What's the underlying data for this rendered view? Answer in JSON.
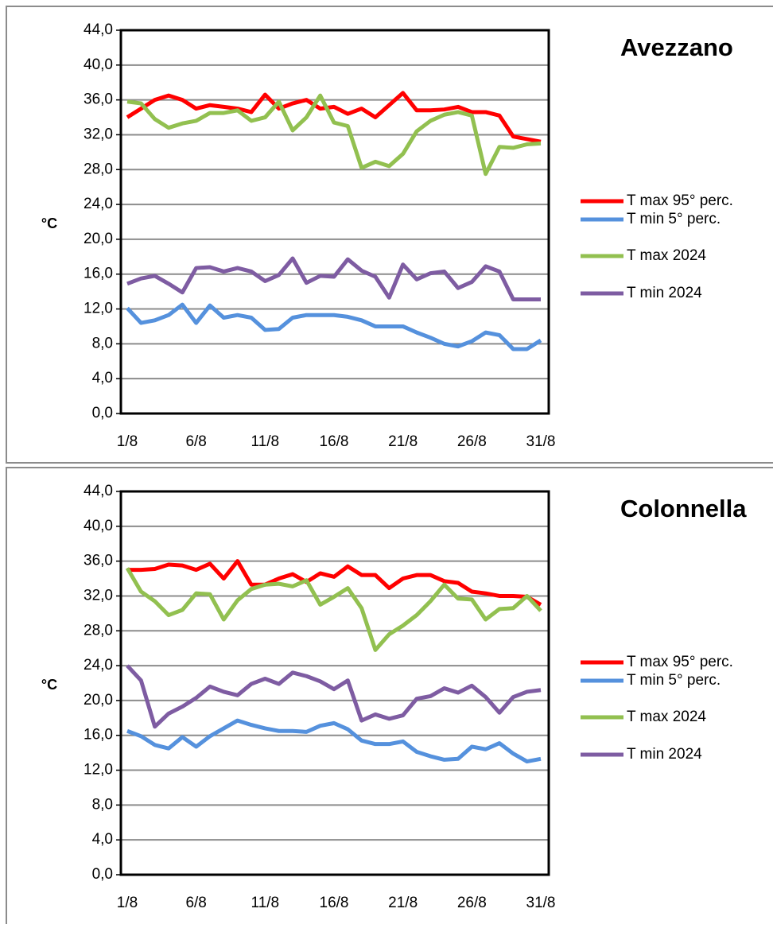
{
  "chart_data": [
    {
      "type": "line",
      "title": "Avezzano",
      "y_label": "°C",
      "categories": [
        "1/8",
        null,
        null,
        null,
        null,
        "6/8",
        null,
        null,
        null,
        null,
        "11/8",
        null,
        null,
        null,
        null,
        "16/8",
        null,
        null,
        null,
        null,
        "21/8",
        null,
        null,
        null,
        null,
        "26/8",
        null,
        null,
        null,
        null,
        "31/8"
      ],
      "ylim": [
        0,
        44
      ],
      "yticks": [
        {
          "value": 0,
          "label": "0,0"
        },
        {
          "value": 4,
          "label": "4,0"
        },
        {
          "value": 8,
          "label": "8,0"
        },
        {
          "value": 12,
          "label": "12,0"
        },
        {
          "value": 16,
          "label": "16,0"
        },
        {
          "value": 20,
          "label": "20,0"
        },
        {
          "value": 24,
          "label": "24,0"
        },
        {
          "value": 28,
          "label": "28,0"
        },
        {
          "value": 32,
          "label": "32,0"
        },
        {
          "value": 36,
          "label": "36,0"
        },
        {
          "value": 40,
          "label": "40,0"
        },
        {
          "value": 44,
          "label": "44,0"
        }
      ],
      "grid": true,
      "series": [
        {
          "name": "T max 95° perc.",
          "color": "#ff0000",
          "values": [
            34.0,
            35.0,
            36.0,
            36.5,
            36.0,
            35.0,
            35.4,
            35.2,
            35.0,
            34.6,
            36.6,
            35.0,
            35.6,
            36.0,
            35.0,
            35.2,
            34.4,
            35.0,
            34.0,
            35.4,
            36.8,
            34.8,
            34.8,
            34.9,
            35.2,
            34.6,
            34.6,
            34.2,
            31.8,
            31.5,
            31.2
          ]
        },
        {
          "name": "T min 5° perc.",
          "color": "#5591dd",
          "values": [
            12.1,
            10.4,
            10.7,
            11.3,
            12.5,
            10.4,
            12.4,
            11.0,
            11.3,
            11.0,
            9.6,
            9.7,
            11.0,
            11.3,
            11.3,
            11.3,
            11.1,
            10.7,
            10.0,
            10.0,
            10.0,
            9.3,
            8.7,
            8.0,
            7.7,
            8.3,
            9.3,
            9.0,
            7.4,
            7.4,
            8.4
          ]
        },
        {
          "name": "T max 2024",
          "color": "#92c050",
          "values": [
            35.8,
            35.6,
            33.8,
            32.8,
            33.3,
            33.6,
            34.5,
            34.5,
            34.8,
            33.6,
            34.0,
            35.8,
            32.5,
            34.0,
            36.5,
            33.4,
            33.0,
            28.2,
            28.9,
            28.4,
            29.8,
            32.4,
            33.6,
            34.3,
            34.6,
            34.2,
            27.5,
            30.6,
            30.5,
            30.9,
            31.0
          ]
        },
        {
          "name": "T min 2024",
          "color": "#7e5ca2",
          "values": [
            14.9,
            15.5,
            15.8,
            14.9,
            13.9,
            16.7,
            16.8,
            16.3,
            16.7,
            16.3,
            15.2,
            15.9,
            17.8,
            15.0,
            15.8,
            15.7,
            17.7,
            16.4,
            15.7,
            13.3,
            17.1,
            15.4,
            16.1,
            16.3,
            14.4,
            15.1,
            16.9,
            16.3,
            13.1,
            13.1,
            13.1
          ]
        }
      ]
    },
    {
      "type": "line",
      "title": "Colonnella",
      "y_label": "°C",
      "categories": [
        "1/8",
        null,
        null,
        null,
        null,
        "6/8",
        null,
        null,
        null,
        null,
        "11/8",
        null,
        null,
        null,
        null,
        "16/8",
        null,
        null,
        null,
        null,
        "21/8",
        null,
        null,
        null,
        null,
        "26/8",
        null,
        null,
        null,
        null,
        "31/8"
      ],
      "ylim": [
        0,
        44
      ],
      "yticks": [
        {
          "value": 0,
          "label": "0,0"
        },
        {
          "value": 4,
          "label": "4,0"
        },
        {
          "value": 8,
          "label": "8,0"
        },
        {
          "value": 12,
          "label": "12,0"
        },
        {
          "value": 16,
          "label": "16,0"
        },
        {
          "value": 20,
          "label": "20,0"
        },
        {
          "value": 24,
          "label": "24,0"
        },
        {
          "value": 28,
          "label": "28,0"
        },
        {
          "value": 32,
          "label": "32,0"
        },
        {
          "value": 36,
          "label": "36,0"
        },
        {
          "value": 40,
          "label": "40,0"
        },
        {
          "value": 44,
          "label": "44,0"
        }
      ],
      "grid": true,
      "series": [
        {
          "name": "T max 95° perc.",
          "color": "#ff0000",
          "values": [
            35.0,
            35.0,
            35.1,
            35.6,
            35.5,
            35.0,
            35.7,
            34.0,
            36.0,
            33.3,
            33.3,
            34.0,
            34.5,
            33.6,
            34.6,
            34.2,
            35.4,
            34.4,
            34.4,
            32.9,
            34.0,
            34.4,
            34.4,
            33.7,
            33.5,
            32.5,
            32.3,
            32.0,
            32.0,
            31.9,
            31.0
          ]
        },
        {
          "name": "T min 5° perc.",
          "color": "#5591dd",
          "values": [
            16.5,
            15.9,
            14.9,
            14.5,
            15.8,
            14.7,
            15.9,
            16.8,
            17.7,
            17.2,
            16.8,
            16.5,
            16.5,
            16.4,
            17.1,
            17.4,
            16.7,
            15.4,
            15.0,
            15.0,
            15.3,
            14.1,
            13.6,
            13.2,
            13.3,
            14.7,
            14.4,
            15.1,
            13.9,
            13.0,
            13.3
          ]
        },
        {
          "name": "T max 2024",
          "color": "#92c050",
          "values": [
            35.2,
            32.5,
            31.4,
            29.8,
            30.4,
            32.3,
            32.2,
            29.3,
            31.5,
            32.8,
            33.3,
            33.4,
            33.1,
            33.8,
            31.0,
            31.9,
            32.9,
            30.6,
            25.8,
            27.6,
            28.6,
            29.8,
            31.4,
            33.3,
            31.7,
            31.6,
            29.3,
            30.5,
            30.6,
            32.0,
            30.3
          ]
        },
        {
          "name": "T min 2024",
          "color": "#7e5ca2",
          "values": [
            24.0,
            22.3,
            17.0,
            18.5,
            19.3,
            20.3,
            21.6,
            21.0,
            20.6,
            21.9,
            22.5,
            21.9,
            23.2,
            22.8,
            22.2,
            21.3,
            22.3,
            17.7,
            18.4,
            17.9,
            18.3,
            20.2,
            20.5,
            21.4,
            20.9,
            21.7,
            20.4,
            18.6,
            20.4,
            21.0,
            21.2
          ]
        }
      ]
    }
  ]
}
